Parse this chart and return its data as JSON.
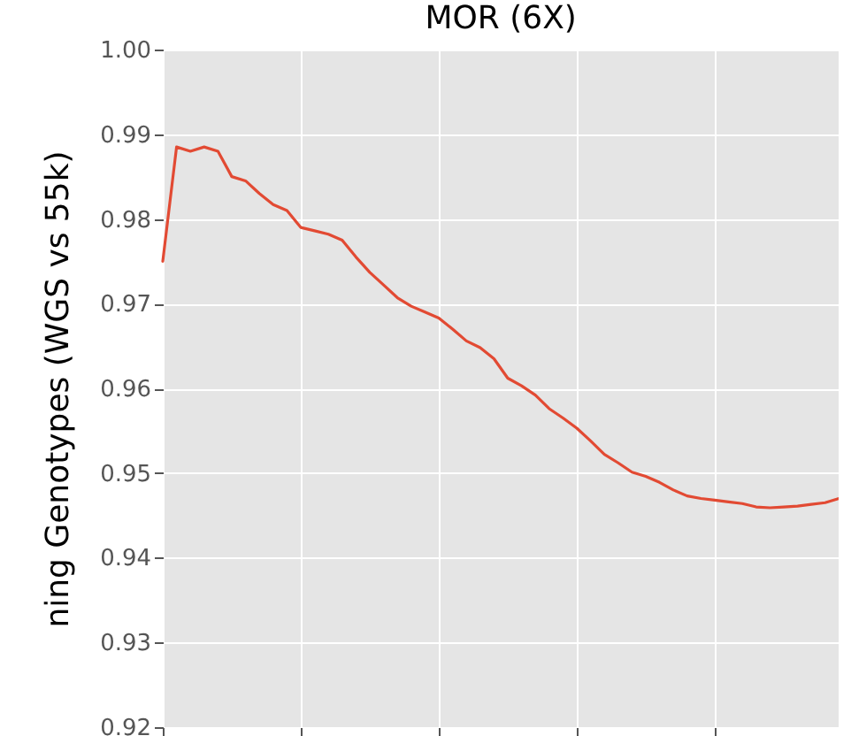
{
  "chart_data": {
    "type": "line",
    "title": "MOR (6X)",
    "ylabel": "ning Genotypes (WGS vs 55k)",
    "categories": [
      null,
      null,
      null,
      null,
      null,
      null,
      null,
      null,
      null,
      null,
      null,
      null,
      null,
      null,
      null,
      null,
      null,
      null,
      null,
      null,
      null,
      null,
      null,
      null,
      null,
      null,
      null,
      null,
      null,
      null,
      null,
      null,
      null,
      null,
      null,
      null,
      null,
      null,
      null,
      null,
      null,
      null,
      null,
      null,
      null,
      null,
      null,
      null,
      null,
      null
    ],
    "series": [
      {
        "color": "#e24a33",
        "values": [
          0.975,
          0.9885,
          0.988,
          0.9885,
          0.988,
          0.985,
          0.9845,
          0.983,
          0.9817,
          0.981,
          0.979,
          0.9786,
          0.9782,
          0.9775,
          0.9755,
          0.9737,
          0.9722,
          0.9707,
          0.9697,
          0.969,
          0.9683,
          0.967,
          0.9656,
          0.9648,
          0.9635,
          0.9612,
          0.9603,
          0.9592,
          0.9576,
          0.9565,
          0.9553,
          0.9538,
          0.9522,
          0.9512,
          0.9501,
          0.9496,
          0.9489,
          0.948,
          0.9473,
          0.947,
          0.9468,
          0.9466,
          0.9464,
          0.946,
          0.9459,
          0.946,
          0.9461,
          0.9463,
          0.9465,
          0.947
        ]
      }
    ],
    "ylim": [
      0.92,
      1.0
    ],
    "yticks": [
      0.92,
      0.93,
      0.94,
      0.95,
      0.96,
      0.97,
      0.98,
      0.99,
      {
        "value": 1.0,
        "label": "1.00"
      }
    ],
    "grid": true,
    "tick_labels": "y",
    "line_style": "solid"
  }
}
